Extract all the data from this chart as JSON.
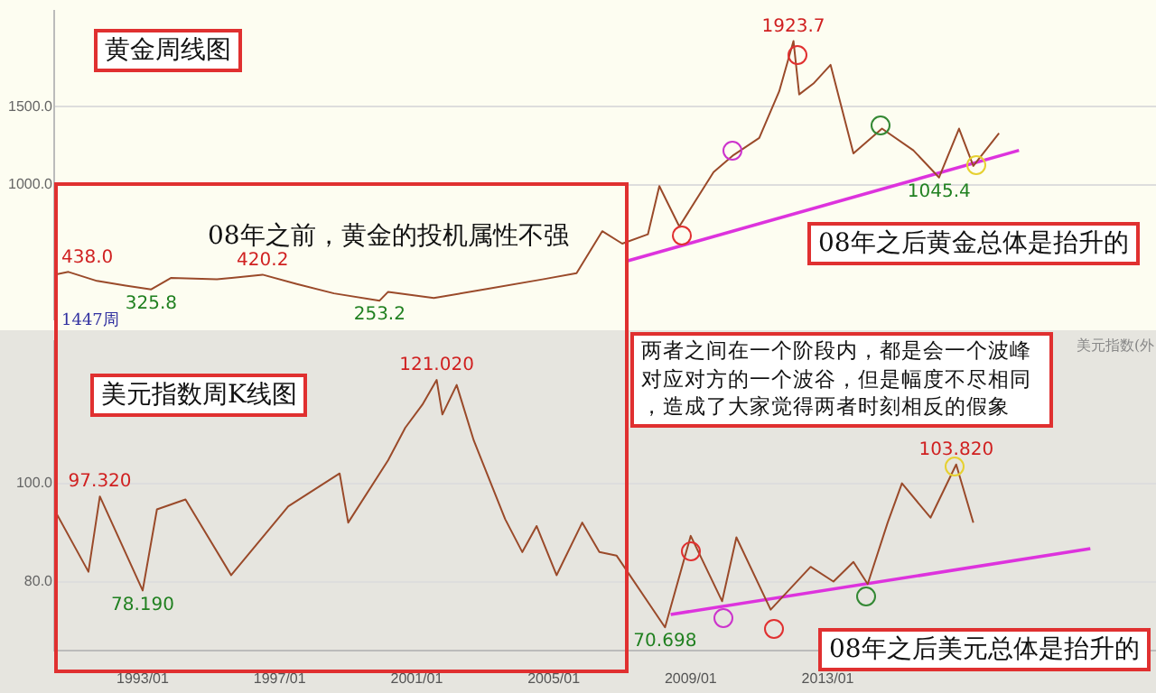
{
  "chart_data": [
    {
      "type": "line",
      "title": "黄金周线图",
      "annotations": [
        "08年之前，黄金的投机属性不强",
        "08年之后黄金总体是抬升的",
        "1447周"
      ],
      "xlim": [
        "1990-06",
        "2022-08"
      ],
      "ylim": [
        130,
        2120
      ],
      "yticks": [
        {
          "value": 1000,
          "label": "1000.0"
        },
        {
          "value": 1500,
          "label": "1500.0"
        }
      ],
      "grid": "y",
      "legend": false,
      "tick_labels": "y",
      "marker": "none",
      "series": [
        {
          "color": "#9a4a2a",
          "x": [
            "1990-06",
            "1990-11",
            "1991-09",
            "1992-07",
            "1993-04",
            "1993-11",
            "1995-03",
            "1996-07",
            "1997-07",
            "1998-08",
            "1999-12",
            "2000-03",
            "2001-07",
            "2003-02",
            "2004-09",
            "2005-09",
            "2006-06",
            "2007-01",
            "2007-10",
            "2008-02",
            "2008-09",
            "2009-09",
            "2010-04",
            "2011-01",
            "2011-08",
            "2012-01",
            "2012-03",
            "2012-08",
            "2013-02",
            "2013-10",
            "2014-08",
            "2015-07",
            "2016-04",
            "2016-11",
            "2017-04",
            "2018-01"
          ],
          "values": [
            420,
            438,
            380,
            350,
            325.8,
            400,
            390,
            420.2,
            360,
            300,
            253.2,
            310,
            270,
            330,
            390,
            430,
            700,
            620,
            680,
            990,
            730,
            1080,
            1190,
            1300,
            1600,
            1923.7,
            1580,
            1650,
            1770,
            1200,
            1360,
            1220,
            1045.4,
            1360,
            1120,
            1330
          ],
          "value_labels": [
            null,
            "438.0",
            null,
            null,
            "325.8",
            null,
            null,
            "420.2",
            null,
            null,
            "253.2",
            null,
            null,
            null,
            null,
            null,
            null,
            null,
            null,
            null,
            null,
            null,
            null,
            null,
            null,
            "1923.7",
            null,
            null,
            null,
            null,
            null,
            null,
            "1045.4",
            null,
            null,
            null
          ]
        },
        {
          "type": "line",
          "color": "#dd33dd",
          "x": [
            "2007-03",
            "2018-08"
          ],
          "values": [
            510,
            1220
          ]
        }
      ]
    },
    {
      "type": "line",
      "title": "美元指数周K线图",
      "annotations": [
        "两者之间在一个阶段内，都是会一个波峰对应对方的一个波谷，但是幅度不尽相同，造成了大家觉得两者时刻相反的假象",
        "08年之后美元总体是抬升的",
        "美元指数(外"
      ],
      "xlim": [
        "1990-06",
        "2022-08"
      ],
      "xticks": [
        {
          "value": "1993-01",
          "label": "1993/01"
        },
        {
          "value": "1997-01",
          "label": "1997/01"
        },
        {
          "value": "2001-01",
          "label": "2001/01"
        },
        {
          "value": "2005-01",
          "label": "2005/01"
        },
        {
          "value": "2009-01",
          "label": "2009/01"
        },
        {
          "value": "2013-01",
          "label": "2013/01"
        }
      ],
      "ylim": [
        66,
        129
      ],
      "yticks": [
        {
          "value": 80,
          "label": "80.0"
        },
        {
          "value": 100,
          "label": "100.0"
        }
      ],
      "grid": "y",
      "legend": false,
      "marker": "none",
      "series": [
        {
          "color": "#9a4a2a",
          "x": [
            "1990-06",
            "1991-06",
            "1991-10",
            "1993-01",
            "1993-06",
            "1994-04",
            "1995-08",
            "1997-04",
            "1998-10",
            "1999-01",
            "2000-03",
            "2000-09",
            "2001-03",
            "2001-08",
            "2001-10",
            "2002-03",
            "2002-09",
            "2003-08",
            "2004-02",
            "2004-07",
            "2005-02",
            "2005-11",
            "2006-05",
            "2006-11",
            "2008-04",
            "2009-01",
            "2009-12",
            "2010-05",
            "2011-05",
            "2012-07",
            "2013-03",
            "2013-10",
            "2014-03",
            "2014-10",
            "2015-03",
            "2016-01",
            "2016-10",
            "2017-04"
          ],
          "values": [
            94.7,
            82,
            97.32,
            78.19,
            94.7,
            96.7,
            81.3,
            95.3,
            102,
            92,
            104.7,
            111.3,
            116,
            121.02,
            114,
            120,
            108.7,
            92.7,
            86,
            91.3,
            81.3,
            92,
            86,
            85.3,
            70.698,
            89.3,
            76,
            89,
            74.3,
            83,
            80,
            84,
            79.5,
            92,
            100,
            93,
            103.82,
            92
          ],
          "value_labels": [
            null,
            null,
            "97.320",
            "78.190",
            null,
            null,
            null,
            null,
            null,
            null,
            null,
            null,
            null,
            "121.020",
            null,
            null,
            null,
            null,
            null,
            null,
            null,
            null,
            null,
            null,
            "70.698",
            null,
            null,
            null,
            null,
            null,
            null,
            null,
            null,
            null,
            null,
            null,
            "103.820",
            null
          ]
        },
        {
          "type": "line",
          "color": "#dd33dd",
          "x": [
            "2008-06",
            "2020-09"
          ],
          "values": [
            73.3,
            86.7
          ]
        }
      ]
    }
  ]
}
